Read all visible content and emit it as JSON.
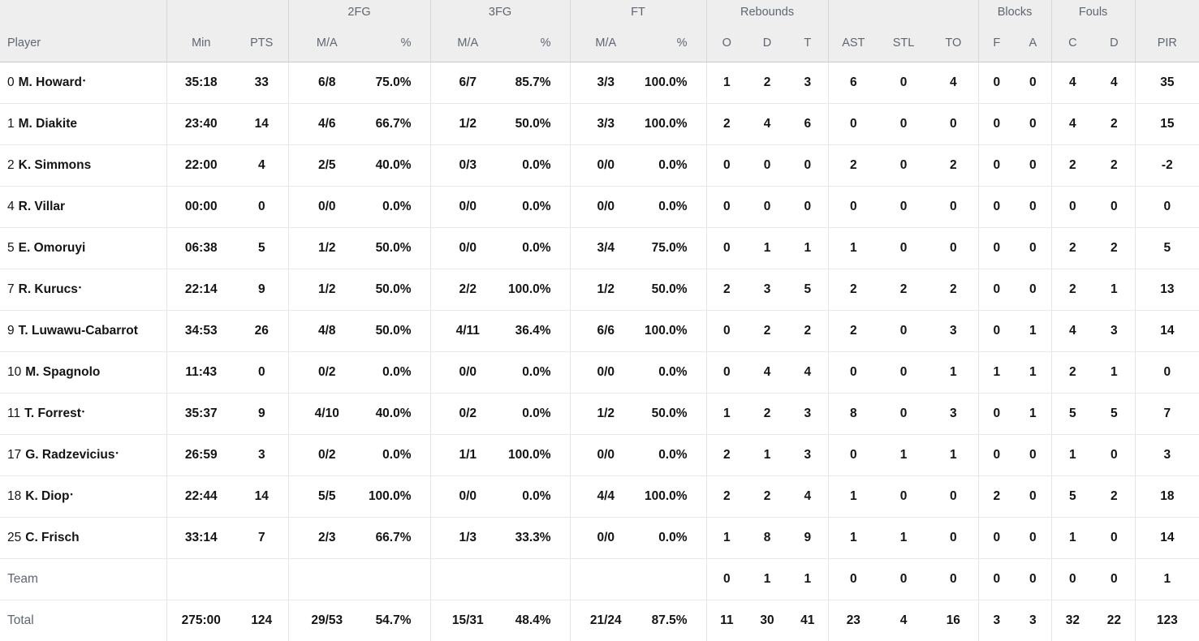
{
  "table": {
    "header": {
      "player": "Player",
      "min": "Min",
      "pts": "PTS",
      "groups": {
        "fg2": "2FG",
        "fg3": "3FG",
        "ft": "FT",
        "rebounds": "Rebounds",
        "blocks": "Blocks",
        "fouls": "Fouls"
      },
      "ma": "M/A",
      "pct": "%",
      "reb_o": "O",
      "reb_d": "D",
      "reb_t": "T",
      "ast": "AST",
      "stl": "STL",
      "to": "TO",
      "blk_f": "F",
      "blk_a": "A",
      "foul_c": "C",
      "foul_d": "D",
      "pir": "PIR"
    },
    "starter_mark": "•",
    "column_keys": [
      "player",
      "min",
      "pts",
      "fg2_ma",
      "fg2_pct",
      "fg3_ma",
      "fg3_pct",
      "ft_ma",
      "ft_pct",
      "reb_o",
      "reb_d",
      "reb_t",
      "ast",
      "stl",
      "to",
      "blk_f",
      "blk_a",
      "foul_c",
      "foul_d",
      "pir"
    ],
    "rows": [
      {
        "type": "player",
        "num": "0",
        "name": "M. Howard",
        "starter": true,
        "min": "35:18",
        "pts": "33",
        "fg2_ma": "6/8",
        "fg2_pct": "75.0%",
        "fg3_ma": "6/7",
        "fg3_pct": "85.7%",
        "ft_ma": "3/3",
        "ft_pct": "100.0%",
        "reb_o": "1",
        "reb_d": "2",
        "reb_t": "3",
        "ast": "6",
        "stl": "0",
        "to": "4",
        "blk_f": "0",
        "blk_a": "0",
        "foul_c": "4",
        "foul_d": "4",
        "pir": "35"
      },
      {
        "type": "player",
        "num": "1",
        "name": "M. Diakite",
        "starter": false,
        "min": "23:40",
        "pts": "14",
        "fg2_ma": "4/6",
        "fg2_pct": "66.7%",
        "fg3_ma": "1/2",
        "fg3_pct": "50.0%",
        "ft_ma": "3/3",
        "ft_pct": "100.0%",
        "reb_o": "2",
        "reb_d": "4",
        "reb_t": "6",
        "ast": "0",
        "stl": "0",
        "to": "0",
        "blk_f": "0",
        "blk_a": "0",
        "foul_c": "4",
        "foul_d": "2",
        "pir": "15"
      },
      {
        "type": "player",
        "num": "2",
        "name": "K. Simmons",
        "starter": false,
        "min": "22:00",
        "pts": "4",
        "fg2_ma": "2/5",
        "fg2_pct": "40.0%",
        "fg3_ma": "0/3",
        "fg3_pct": "0.0%",
        "ft_ma": "0/0",
        "ft_pct": "0.0%",
        "reb_o": "0",
        "reb_d": "0",
        "reb_t": "0",
        "ast": "2",
        "stl": "0",
        "to": "2",
        "blk_f": "0",
        "blk_a": "0",
        "foul_c": "2",
        "foul_d": "2",
        "pir": "-2"
      },
      {
        "type": "player",
        "num": "4",
        "name": "R. Villar",
        "starter": false,
        "min": "00:00",
        "pts": "0",
        "fg2_ma": "0/0",
        "fg2_pct": "0.0%",
        "fg3_ma": "0/0",
        "fg3_pct": "0.0%",
        "ft_ma": "0/0",
        "ft_pct": "0.0%",
        "reb_o": "0",
        "reb_d": "0",
        "reb_t": "0",
        "ast": "0",
        "stl": "0",
        "to": "0",
        "blk_f": "0",
        "blk_a": "0",
        "foul_c": "0",
        "foul_d": "0",
        "pir": "0"
      },
      {
        "type": "player",
        "num": "5",
        "name": "E. Omoruyi",
        "starter": false,
        "min": "06:38",
        "pts": "5",
        "fg2_ma": "1/2",
        "fg2_pct": "50.0%",
        "fg3_ma": "0/0",
        "fg3_pct": "0.0%",
        "ft_ma": "3/4",
        "ft_pct": "75.0%",
        "reb_o": "0",
        "reb_d": "1",
        "reb_t": "1",
        "ast": "1",
        "stl": "0",
        "to": "0",
        "blk_f": "0",
        "blk_a": "0",
        "foul_c": "2",
        "foul_d": "2",
        "pir": "5"
      },
      {
        "type": "player",
        "num": "7",
        "name": "R. Kurucs",
        "starter": true,
        "min": "22:14",
        "pts": "9",
        "fg2_ma": "1/2",
        "fg2_pct": "50.0%",
        "fg3_ma": "2/2",
        "fg3_pct": "100.0%",
        "ft_ma": "1/2",
        "ft_pct": "50.0%",
        "reb_o": "2",
        "reb_d": "3",
        "reb_t": "5",
        "ast": "2",
        "stl": "2",
        "to": "2",
        "blk_f": "0",
        "blk_a": "0",
        "foul_c": "2",
        "foul_d": "1",
        "pir": "13"
      },
      {
        "type": "player",
        "num": "9",
        "name": "T. Luwawu-Cabarrot",
        "starter": false,
        "min": "34:53",
        "pts": "26",
        "fg2_ma": "4/8",
        "fg2_pct": "50.0%",
        "fg3_ma": "4/11",
        "fg3_pct": "36.4%",
        "ft_ma": "6/6",
        "ft_pct": "100.0%",
        "reb_o": "0",
        "reb_d": "2",
        "reb_t": "2",
        "ast": "2",
        "stl": "0",
        "to": "3",
        "blk_f": "0",
        "blk_a": "1",
        "foul_c": "4",
        "foul_d": "3",
        "pir": "14"
      },
      {
        "type": "player",
        "num": "10",
        "name": "M. Spagnolo",
        "starter": false,
        "min": "11:43",
        "pts": "0",
        "fg2_ma": "0/2",
        "fg2_pct": "0.0%",
        "fg3_ma": "0/0",
        "fg3_pct": "0.0%",
        "ft_ma": "0/0",
        "ft_pct": "0.0%",
        "reb_o": "0",
        "reb_d": "4",
        "reb_t": "4",
        "ast": "0",
        "stl": "0",
        "to": "1",
        "blk_f": "1",
        "blk_a": "1",
        "foul_c": "2",
        "foul_d": "1",
        "pir": "0"
      },
      {
        "type": "player",
        "num": "11",
        "name": "T. Forrest",
        "starter": true,
        "min": "35:37",
        "pts": "9",
        "fg2_ma": "4/10",
        "fg2_pct": "40.0%",
        "fg3_ma": "0/2",
        "fg3_pct": "0.0%",
        "ft_ma": "1/2",
        "ft_pct": "50.0%",
        "reb_o": "1",
        "reb_d": "2",
        "reb_t": "3",
        "ast": "8",
        "stl": "0",
        "to": "3",
        "blk_f": "0",
        "blk_a": "1",
        "foul_c": "5",
        "foul_d": "5",
        "pir": "7"
      },
      {
        "type": "player",
        "num": "17",
        "name": "G. Radzevicius",
        "starter": true,
        "min": "26:59",
        "pts": "3",
        "fg2_ma": "0/2",
        "fg2_pct": "0.0%",
        "fg3_ma": "1/1",
        "fg3_pct": "100.0%",
        "ft_ma": "0/0",
        "ft_pct": "0.0%",
        "reb_o": "2",
        "reb_d": "1",
        "reb_t": "3",
        "ast": "0",
        "stl": "1",
        "to": "1",
        "blk_f": "0",
        "blk_a": "0",
        "foul_c": "1",
        "foul_d": "0",
        "pir": "3"
      },
      {
        "type": "player",
        "num": "18",
        "name": "K. Diop",
        "starter": true,
        "min": "22:44",
        "pts": "14",
        "fg2_ma": "5/5",
        "fg2_pct": "100.0%",
        "fg3_ma": "0/0",
        "fg3_pct": "0.0%",
        "ft_ma": "4/4",
        "ft_pct": "100.0%",
        "reb_o": "2",
        "reb_d": "2",
        "reb_t": "4",
        "ast": "1",
        "stl": "0",
        "to": "0",
        "blk_f": "2",
        "blk_a": "0",
        "foul_c": "5",
        "foul_d": "2",
        "pir": "18"
      },
      {
        "type": "player",
        "num": "25",
        "name": "C. Frisch",
        "starter": false,
        "min": "33:14",
        "pts": "7",
        "fg2_ma": "2/3",
        "fg2_pct": "66.7%",
        "fg3_ma": "1/3",
        "fg3_pct": "33.3%",
        "ft_ma": "0/0",
        "ft_pct": "0.0%",
        "reb_o": "1",
        "reb_d": "8",
        "reb_t": "9",
        "ast": "1",
        "stl": "1",
        "to": "0",
        "blk_f": "0",
        "blk_a": "0",
        "foul_c": "1",
        "foul_d": "0",
        "pir": "14"
      },
      {
        "type": "team",
        "label": "Team",
        "min": "",
        "pts": "",
        "fg2_ma": "",
        "fg2_pct": "",
        "fg3_ma": "",
        "fg3_pct": "",
        "ft_ma": "",
        "ft_pct": "",
        "reb_o": "0",
        "reb_d": "1",
        "reb_t": "1",
        "ast": "0",
        "stl": "0",
        "to": "0",
        "blk_f": "0",
        "blk_a": "0",
        "foul_c": "0",
        "foul_d": "0",
        "pir": "1"
      },
      {
        "type": "total",
        "label": "Total",
        "min": "275:00",
        "pts": "124",
        "fg2_ma": "29/53",
        "fg2_pct": "54.7%",
        "fg3_ma": "15/31",
        "fg3_pct": "48.4%",
        "ft_ma": "21/24",
        "ft_pct": "87.5%",
        "reb_o": "11",
        "reb_d": "30",
        "reb_t": "41",
        "ast": "23",
        "stl": "4",
        "to": "16",
        "blk_f": "3",
        "blk_a": "3",
        "foul_c": "32",
        "foul_d": "22",
        "pir": "123"
      }
    ]
  }
}
